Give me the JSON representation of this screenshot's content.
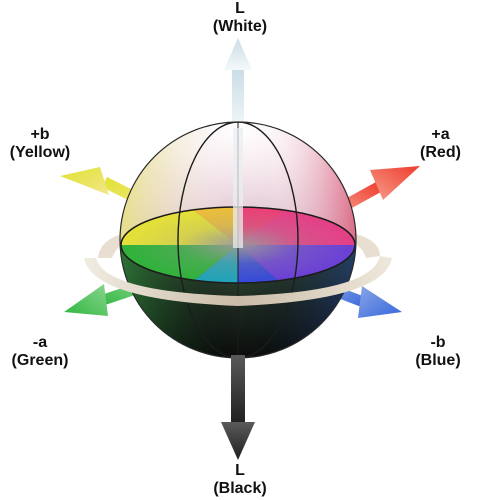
{
  "labels": {
    "white": {
      "axis": "L",
      "name": "(White)"
    },
    "black": {
      "axis": "L",
      "name": "(Black)"
    },
    "red": {
      "axis": "+a",
      "name": "(Red)"
    },
    "green": {
      "axis": "-a",
      "name": "(Green)"
    },
    "yellow": {
      "axis": "+b",
      "name": "(Yellow)"
    },
    "blue": {
      "axis": "-b",
      "name": "(Blue)"
    }
  },
  "colors": {
    "white_arrow": "#dcebf0",
    "black_arrow": "#3a3a3a",
    "red_arrow": "#f04a3a",
    "green_arrow": "#3cbf4a",
    "yellow_arrow": "#e3e43a",
    "blue_arrow": "#3f6fe0",
    "hue_arc": "#d9cfc0"
  }
}
